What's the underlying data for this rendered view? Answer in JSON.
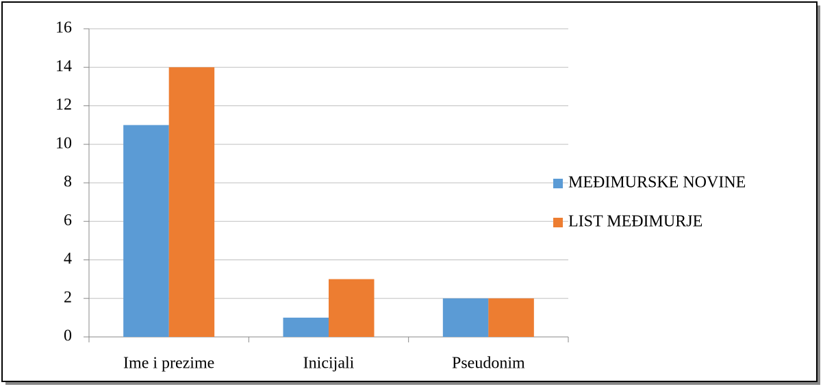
{
  "chart_data": {
    "type": "bar",
    "categories": [
      "Ime i prezime",
      "Inicijali",
      "Pseudonim"
    ],
    "series": [
      {
        "name": "MEĐIMURSKE NOVINE",
        "color": "#5b9bd5",
        "values": [
          11,
          1,
          2
        ]
      },
      {
        "name": "LIST MEĐIMURJE",
        "color": "#ed7d31",
        "values": [
          14,
          3,
          2
        ]
      }
    ],
    "ylim": [
      0,
      16
    ],
    "yticks": [
      0,
      2,
      4,
      6,
      8,
      10,
      12,
      14,
      16
    ],
    "grid": true,
    "legend": "right"
  }
}
